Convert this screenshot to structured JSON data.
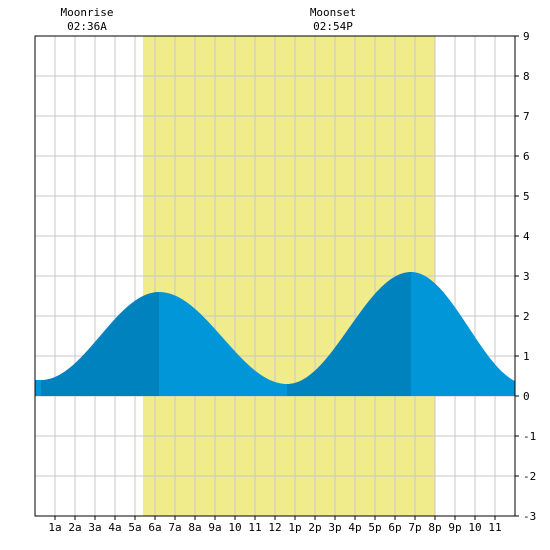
{
  "chart_data": {
    "type": "area",
    "x_unit": "hour",
    "xlim": [
      0,
      24
    ],
    "ylim": [
      -3,
      9
    ],
    "grid": true,
    "x_tick_labels": [
      "1a",
      "2a",
      "3a",
      "4a",
      "5a",
      "6a",
      "7a",
      "8a",
      "9a",
      "10",
      "11",
      "12",
      "1p",
      "2p",
      "3p",
      "4p",
      "5p",
      "6p",
      "7p",
      "8p",
      "9p",
      "10",
      "11"
    ],
    "y_tick_labels": [
      "-3",
      "-2",
      "-1",
      "0",
      "1",
      "2",
      "3",
      "4",
      "5",
      "6",
      "7",
      "8",
      "9"
    ],
    "daylight": {
      "start_hour": 5.4,
      "end_hour": 20.0,
      "color": "#f0ec8c"
    },
    "events": [
      {
        "label": "Moonrise",
        "time": "02:36A",
        "hour": 2.6
      },
      {
        "label": "Moonset",
        "time": "02:54P",
        "hour": 14.9
      }
    ],
    "tide_extremes": [
      {
        "hour": 0.3,
        "height": 0.4,
        "kind": "low"
      },
      {
        "hour": 6.2,
        "height": 2.6,
        "kind": "high"
      },
      {
        "hour": 12.6,
        "height": 0.3,
        "kind": "low"
      },
      {
        "hour": 18.8,
        "height": 3.1,
        "kind": "high"
      },
      {
        "hour": 24.6,
        "height": 0.3,
        "kind": "low"
      }
    ],
    "colors": {
      "water_light": "#0096d8",
      "water_dark": "#0082bf",
      "grid": "#c8c8c8",
      "frame": "#000000"
    }
  }
}
